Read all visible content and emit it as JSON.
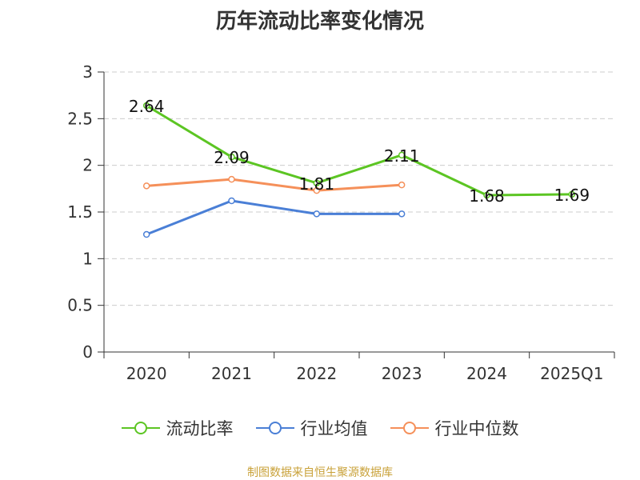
{
  "chart_data": {
    "type": "line",
    "title": "历年流动比率变化情况",
    "categories": [
      "2020",
      "2021",
      "2022",
      "2023",
      "2024",
      "2025Q1"
    ],
    "ylim": [
      0,
      3
    ],
    "yticks": [
      0,
      0.5,
      1,
      1.5,
      2,
      2.5,
      3
    ],
    "ytick_labels": [
      "0",
      "0.5",
      "1",
      "1.5",
      "2",
      "2.5",
      "3"
    ],
    "grid": true,
    "legend_position": "bottom",
    "series": [
      {
        "name": "流动比率",
        "color": "#5cc523",
        "values": [
          2.64,
          2.09,
          1.81,
          2.11,
          1.68,
          1.69
        ],
        "labels": [
          "2.64",
          "2.09",
          "1.81",
          "2.11",
          "1.68",
          "1.69"
        ]
      },
      {
        "name": "行业均值",
        "color": "#4a7fd6",
        "values": [
          1.26,
          1.62,
          1.48,
          1.48,
          null,
          null
        ]
      },
      {
        "name": "行业中位数",
        "color": "#f5905a",
        "values": [
          1.78,
          1.85,
          1.73,
          1.79,
          null,
          null
        ]
      }
    ]
  },
  "source_text": "制图数据来自恒生聚源数据库"
}
